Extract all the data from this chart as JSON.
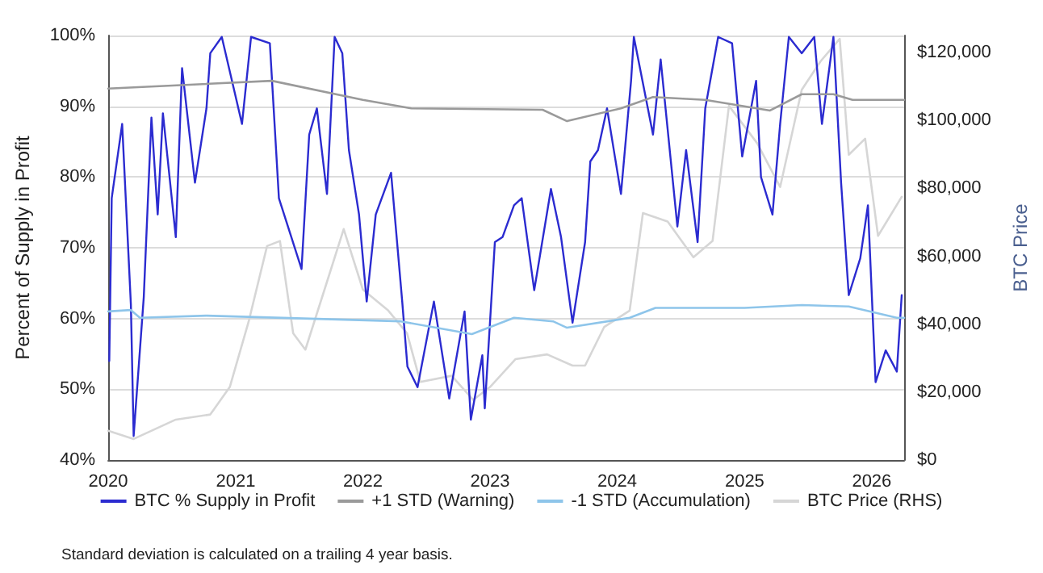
{
  "chart_data": {
    "type": "line",
    "ylabel": "Percent of Supply in Profit",
    "y2label": "BTC Price",
    "xlim": [
      "2020-01-01",
      "2026-04-04"
    ],
    "xticks": [
      {
        "value": "2020-01-01",
        "label": "2020"
      },
      {
        "value": "2021-01-01",
        "label": "2021"
      },
      {
        "value": "2022-01-01",
        "label": "2022"
      },
      {
        "value": "2023-01-01",
        "label": "2023"
      },
      {
        "value": "2024-01-01",
        "label": "2024"
      },
      {
        "value": "2025-01-01",
        "label": "2025"
      },
      {
        "value": "2026-01-01",
        "label": "2026"
      }
    ],
    "ylim": [
      40,
      100
    ],
    "yticks": [
      {
        "value": 40,
        "label": "40%"
      },
      {
        "value": 50,
        "label": "50%"
      },
      {
        "value": 60,
        "label": "60%"
      },
      {
        "value": 70,
        "label": "70%"
      },
      {
        "value": 80,
        "label": "80%"
      },
      {
        "value": 90,
        "label": "90%"
      },
      {
        "value": 100,
        "label": "100%"
      }
    ],
    "y2lim": [
      0,
      125000
    ],
    "y2ticks": [
      {
        "value": 0,
        "label": "$0"
      },
      {
        "value": 20000,
        "label": "$20,000"
      },
      {
        "value": 40000,
        "label": "$40,000"
      },
      {
        "value": 60000,
        "label": "$60,000"
      },
      {
        "value": 80000,
        "label": "$80,000"
      },
      {
        "value": 100000,
        "label": "$100,000"
      },
      {
        "value": 120000,
        "label": "$120,000"
      }
    ],
    "grid": "y",
    "legend": "bottom",
    "marker": "none",
    "series": [
      {
        "name": "BTC % Supply in Profit",
        "color": "#2b2bd0",
        "x": [
          "2020-01-04",
          "2020-01-11",
          "2020-02-10",
          "2020-03-06",
          "2020-03-14",
          "2020-04-12",
          "2020-05-04",
          "2020-05-22",
          "2020-06-06",
          "2020-07-13",
          "2020-07-31",
          "2020-09-06",
          "2020-10-09",
          "2020-10-20",
          "2020-11-22",
          "2021-01-19",
          "2021-02-14",
          "2021-04-09",
          "2021-05-05",
          "2021-07-09",
          "2021-07-31",
          "2021-08-22",
          "2021-09-20",
          "2021-10-12",
          "2021-11-03",
          "2021-11-22",
          "2021-12-21",
          "2022-01-12",
          "2022-02-07",
          "2022-03-23",
          "2022-04-24",
          "2022-05-09",
          "2022-06-07",
          "2022-07-24",
          "2022-09-06",
          "2022-10-20",
          "2022-11-07",
          "2022-12-10",
          "2022-12-17",
          "2023-01-15",
          "2023-02-06",
          "2023-03-11",
          "2023-04-02",
          "2023-05-08",
          "2023-06-25",
          "2023-07-24",
          "2023-08-26",
          "2023-10-01",
          "2023-10-16",
          "2023-11-07",
          "2023-12-03",
          "2024-01-12",
          "2024-02-10",
          "2024-02-18",
          "2024-04-13",
          "2024-05-05",
          "2024-06-22",
          "2024-07-17",
          "2024-08-19",
          "2024-09-10",
          "2024-10-17",
          "2024-11-26",
          "2024-12-25",
          "2025-02-03",
          "2025-02-17",
          "2025-03-22",
          "2025-04-13",
          "2025-05-08",
          "2025-06-14",
          "2025-07-20",
          "2025-08-11",
          "2025-09-13",
          "2025-10-05",
          "2025-10-27",
          "2025-11-29",
          "2025-12-21",
          "2026-01-12",
          "2026-02-10",
          "2026-03-14",
          "2026-03-28"
        ],
        "values": [
          54,
          77,
          87.5,
          62,
          43.4,
          63,
          88.4,
          74.7,
          89,
          71.5,
          95.4,
          79.2,
          89.7,
          97.5,
          99.8,
          87.5,
          99.8,
          98.9,
          77,
          67,
          86,
          89.7,
          77.6,
          99.8,
          97.5,
          83.8,
          74.7,
          62.4,
          74.7,
          80.6,
          62.4,
          53.2,
          50.3,
          62.4,
          48.7,
          61,
          45.7,
          54.8,
          47.3,
          70.8,
          71.5,
          76,
          77,
          64,
          78.3,
          71.5,
          59.4,
          70.8,
          82.2,
          83.8,
          89.7,
          77.6,
          93.6,
          99.8,
          86,
          96.6,
          73,
          83.8,
          70.8,
          89.7,
          99.8,
          98.9,
          82.9,
          93.6,
          80,
          74.7,
          87.5,
          99.8,
          97.5,
          99.8,
          87.5,
          99.8,
          79.2,
          63.3,
          68.5,
          76,
          51,
          55.5,
          52.5,
          63.3
        ]
      },
      {
        "name": "+1 STD (Warning)",
        "color": "#9a9a9a",
        "x": [
          "2020-01-01",
          "2021-04-15",
          "2022-01-01",
          "2022-05-20",
          "2023-06-01",
          "2023-08-10",
          "2024-01-12",
          "2024-04-13",
          "2024-09-10",
          "2025-03-15",
          "2025-06-14",
          "2025-09-13",
          "2025-11-07",
          "2026-04-04"
        ],
        "values": [
          92.5,
          93.6,
          90.9,
          89.7,
          89.5,
          87.9,
          89.7,
          91.3,
          90.9,
          89.4,
          91.7,
          91.7,
          90.9,
          90.9
        ]
      },
      {
        "name": "-1 STD (Accumulation)",
        "color": "#8ec5ea",
        "x": [
          "2020-01-01",
          "2020-03-06",
          "2020-04-01",
          "2020-10-09",
          "2022-04-20",
          "2022-11-10",
          "2023-03-11",
          "2023-07-01",
          "2023-08-10",
          "2024-02-06",
          "2024-04-20",
          "2025-01-01",
          "2025-06-14",
          "2025-10-27",
          "2026-03-14",
          "2026-04-04"
        ],
        "values": [
          61,
          61.2,
          60.1,
          60.4,
          59.6,
          57.8,
          60.1,
          59.6,
          58.7,
          60.1,
          61.5,
          61.5,
          61.9,
          61.7,
          60.1,
          60.1
        ]
      },
      {
        "name": "BTC Price (RHS)",
        "color": "#d6d6d6",
        "axis": "y2",
        "x": [
          "2020-01-01",
          "2020-03-14",
          "2020-07-13",
          "2020-10-20",
          "2020-12-15",
          "2021-02-07",
          "2021-04-01",
          "2021-05-08",
          "2021-06-15",
          "2021-07-20",
          "2021-09-13",
          "2021-11-07",
          "2022-01-01",
          "2022-03-15",
          "2022-05-08",
          "2022-06-15",
          "2022-09-13",
          "2022-11-14",
          "2023-01-01",
          "2023-03-15",
          "2023-06-14",
          "2023-08-26",
          "2023-10-01",
          "2023-11-25",
          "2024-02-06",
          "2024-03-15",
          "2024-05-25",
          "2024-08-07",
          "2024-10-01",
          "2024-11-17",
          "2025-02-06",
          "2025-04-13",
          "2025-06-14",
          "2025-08-07",
          "2025-10-01",
          "2025-10-27",
          "2025-12-13",
          "2026-01-19",
          "2026-03-28"
        ],
        "values": [
          8600,
          6200,
          11900,
          13400,
          21500,
          40700,
          63000,
          64500,
          37300,
          32500,
          50200,
          68000,
          50200,
          44000,
          37300,
          23000,
          24800,
          17700,
          21500,
          29700,
          31100,
          27800,
          27800,
          39200,
          44000,
          72700,
          70200,
          59700,
          64500,
          104300,
          93300,
          80400,
          109000,
          117400,
          124000,
          89900,
          94600,
          66000,
          77500
        ]
      }
    ],
    "annotations": [
      "Standard deviation is calculated on a trailing 4 year basis."
    ]
  }
}
